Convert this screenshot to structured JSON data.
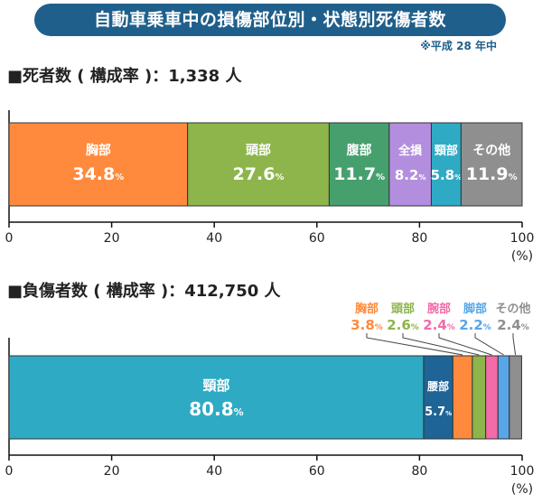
{
  "header": {
    "title": "自動車乗車中の損傷部位別・状態別死傷者数",
    "note": "※平成 28 年中"
  },
  "deaths": {
    "heading": "■死者数 ( 構成率 )：1,338 人"
  },
  "injured": {
    "heading": "■負傷者数 ( 構成率 )：412,750 人"
  },
  "colors": {
    "chest": "#ff8a3d",
    "head": "#8db54b",
    "abdomen": "#46a06e",
    "whole": "#b48ede",
    "neck": "#2eaac4",
    "other": "#8f8f8f",
    "waist": "#1f6496",
    "arm": "#f36ba8",
    "leg": "#58a6e8"
  },
  "chart_data": [
    {
      "type": "bar",
      "orientation": "horizontal-stacked",
      "title": "■死者数 ( 構成率 )：1,338 人",
      "unit_label": "(%)",
      "xlim": [
        0,
        100
      ],
      "ticks": [
        0,
        20,
        40,
        60,
        80,
        100
      ],
      "segments": [
        {
          "name": "胸部",
          "value": 34.8,
          "color_key": "chest"
        },
        {
          "name": "頭部",
          "value": 27.6,
          "color_key": "head"
        },
        {
          "name": "腹部",
          "value": 11.7,
          "color_key": "abdomen"
        },
        {
          "name": "全損",
          "value": 8.2,
          "color_key": "whole"
        },
        {
          "name": "頸部",
          "value": 5.8,
          "color_key": "neck"
        },
        {
          "name": "その他",
          "value": 11.9,
          "color_key": "other"
        }
      ]
    },
    {
      "type": "bar",
      "orientation": "horizontal-stacked",
      "title": "■負傷者数 ( 構成率 )：412,750 人",
      "unit_label": "(%)",
      "xlim": [
        0,
        100
      ],
      "ticks": [
        0,
        20,
        40,
        60,
        80,
        100
      ],
      "segments": [
        {
          "name": "頸部",
          "value": 80.8,
          "color_key": "neck"
        },
        {
          "name": "腰部",
          "value": 5.7,
          "color_key": "waist"
        },
        {
          "name": "胸部",
          "value": 3.8,
          "color_key": "chest"
        },
        {
          "name": "頭部",
          "value": 2.6,
          "color_key": "head"
        },
        {
          "name": "腕部",
          "value": 2.4,
          "color_key": "arm"
        },
        {
          "name": "脚部",
          "value": 2.2,
          "color_key": "leg"
        },
        {
          "name": "その他",
          "value": 2.4,
          "color_key": "other"
        }
      ]
    }
  ]
}
